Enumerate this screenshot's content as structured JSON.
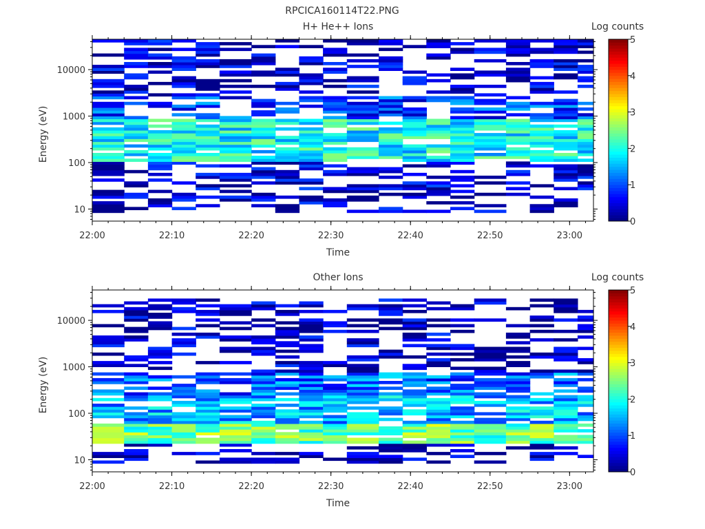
{
  "figure_title": "RPCICA160114T22.PNG",
  "chart_data": [
    {
      "type": "heatmap",
      "title": "H+ He++ Ions",
      "xlabel": "Time",
      "ylabel": "Energy (eV)",
      "x_ticks": [
        "22:00",
        "22:10",
        "22:20",
        "22:30",
        "22:40",
        "22:50",
        "23:00"
      ],
      "x_range": [
        "22:00",
        "23:03"
      ],
      "y_scale": "log",
      "y_ticks": [
        10,
        100,
        1000,
        10000
      ],
      "y_range": [
        5.5,
        45000
      ],
      "colorbar": {
        "label": "Log counts",
        "range": [
          0,
          5
        ],
        "ticks": [
          0,
          1,
          2,
          3,
          4,
          5
        ]
      },
      "columns": [
        "22:00",
        "22:04",
        "22:07",
        "22:10",
        "22:13",
        "22:16",
        "22:20",
        "22:23",
        "22:26",
        "22:29",
        "22:32",
        "22:36",
        "22:39",
        "22:42",
        "22:45",
        "22:48",
        "22:52",
        "22:55",
        "22:58",
        "23:01"
      ],
      "layers": [
        {
          "range": [
            9,
            24
          ],
          "level": 0.3
        },
        {
          "range": [
            24,
            110
          ],
          "level": 0.4
        },
        {
          "range": [
            110,
            900
          ],
          "level": 1.9
        },
        {
          "range": [
            900,
            2600
          ],
          "level": 0.9
        },
        {
          "range": [
            2600,
            45000
          ],
          "level": 0.35
        }
      ]
    },
    {
      "type": "heatmap",
      "title": "Other Ions",
      "xlabel": "Time",
      "ylabel": "Energy (eV)",
      "x_ticks": [
        "22:00",
        "22:10",
        "22:20",
        "22:30",
        "22:40",
        "22:50",
        "23:00"
      ],
      "x_range": [
        "22:00",
        "23:03"
      ],
      "y_scale": "log",
      "y_ticks": [
        10,
        100,
        1000,
        10000
      ],
      "y_range": [
        5.5,
        45000
      ],
      "colorbar": {
        "label": "Log counts",
        "range": [
          0,
          5
        ],
        "ticks": [
          0,
          1,
          2,
          3,
          4,
          5
        ]
      },
      "columns": [
        "22:00",
        "22:04",
        "22:07",
        "22:10",
        "22:13",
        "22:16",
        "22:20",
        "22:23",
        "22:26",
        "22:29",
        "22:32",
        "22:36",
        "22:39",
        "22:42",
        "22:45",
        "22:48",
        "22:52",
        "22:55",
        "22:58",
        "23:01"
      ],
      "layers": [
        {
          "range": [
            8,
            24
          ],
          "level": 0.2
        },
        {
          "range": [
            24,
            60
          ],
          "level": 2.4
        },
        {
          "range": [
            60,
            250
          ],
          "level": 1.5
        },
        {
          "range": [
            250,
            800
          ],
          "level": 1.1
        },
        {
          "range": [
            800,
            30000
          ],
          "level": 0.3
        }
      ]
    }
  ]
}
